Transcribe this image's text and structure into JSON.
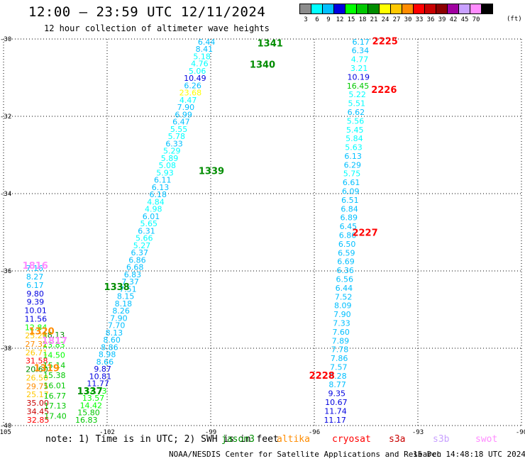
{
  "header": {
    "title": "12:00 – 23:59 UTC 12/11/2024",
    "subtitle": "12 hour collection of altimeter wave heights"
  },
  "legend": {
    "unit": "(ft)",
    "bins": [
      {
        "label": "3",
        "color": "#8c8c8c"
      },
      {
        "label": "6",
        "color": "#00ffff"
      },
      {
        "label": "9",
        "color": "#00bfff"
      },
      {
        "label": "12",
        "color": "#0000e0"
      },
      {
        "label": "15",
        "color": "#00ff00"
      },
      {
        "label": "18",
        "color": "#00c800"
      },
      {
        "label": "21",
        "color": "#008c00"
      },
      {
        "label": "24",
        "color": "#ffff00"
      },
      {
        "label": "27",
        "color": "#ffc800"
      },
      {
        "label": "30",
        "color": "#ff8c00"
      },
      {
        "label": "33",
        "color": "#ff0000"
      },
      {
        "label": "36",
        "color": "#c80000"
      },
      {
        "label": "39",
        "color": "#8c0000"
      },
      {
        "label": "42",
        "color": "#a000a0"
      },
      {
        "label": "45",
        "color": "#c8a0ff"
      },
      {
        "label": "70",
        "color": "#ff8cff"
      },
      {
        "label": "",
        "color": "#000000"
      }
    ]
  },
  "map_data": {
    "lon_ticks": [
      {
        "value": -105,
        "label": "-105"
      },
      {
        "value": -102,
        "label": "-102"
      },
      {
        "value": -99,
        "label": "-99"
      },
      {
        "value": -96,
        "label": "-96"
      },
      {
        "value": -93,
        "label": "-93"
      },
      {
        "value": -90,
        "label": "-90"
      }
    ],
    "lat_ticks": [
      {
        "value": -30,
        "label": "-30"
      },
      {
        "value": -32,
        "label": "-32"
      },
      {
        "value": -34,
        "label": "-34"
      },
      {
        "value": -36,
        "label": "-36"
      },
      {
        "value": -38,
        "label": "-38"
      },
      {
        "value": -40,
        "label": "-40"
      }
    ],
    "lon_range": [
      -105,
      -90
    ],
    "lat_range": [
      -40,
      -30
    ],
    "grid": true,
    "tracks": [
      {
        "lon_start": -99.12,
        "lat_start": -30.07,
        "lon_end": -102.6,
        "lat_end": -39.85,
        "values": [
          "6.44",
          "8.41",
          "5.18",
          "4.76",
          "5.06",
          "10.49",
          "6.26",
          "23.68",
          "4.47",
          "7.90",
          "6.99",
          "6.47",
          "5.55",
          "5.78",
          "6.33",
          "5.29",
          "5.89",
          "5.08",
          "5.93",
          "6.11",
          "6.13",
          "6.18",
          "4.84",
          "4.98",
          "6.01",
          "5.65",
          "6.31",
          "5.66",
          "5.27",
          "6.37",
          "6.86",
          "6.68",
          "6.83",
          "7.37",
          "7.51",
          "8.15",
          "8.18",
          "8.26",
          "7.90",
          "7.70",
          "8.13",
          "8.60",
          "8.86",
          "8.98",
          "8.66",
          "9.87",
          "10.81",
          "11.77",
          "12.73",
          "13.57",
          "14.42",
          "15.80",
          "16.83"
        ]
      },
      {
        "lon_start": -104.1,
        "lat_start": -35.93,
        "lon_end": -104.0,
        "lat_end": -39.85,
        "values": [
          "7.16",
          "8.27",
          "6.17",
          "9.80",
          "9.39",
          "10.01",
          "11.56",
          "12.84",
          "25.26",
          "27.32",
          "26.71",
          "31.58",
          "20.60",
          "26.50",
          "29.75",
          "25.17",
          "35.00",
          "34.45",
          "32.85"
        ]
      },
      {
        "lon_start": -103.55,
        "lat_start": -37.65,
        "lon_end": -103.5,
        "lat_end": -39.75,
        "values": [
          "18.13",
          "13.83",
          "14.50",
          "15.14",
          "15.38",
          "16.01",
          "16.77",
          "17.13",
          "17.40"
        ]
      },
      {
        "lon_start": -94.65,
        "lat_start": -30.07,
        "lon_end": -95.4,
        "lat_end": -39.85,
        "values": [
          "6.17",
          "6.34",
          "4.77",
          "3.21",
          "10.19",
          "16.45",
          "5.22",
          "5.51",
          "6.62",
          "5.56",
          "5.45",
          "5.84",
          "5.63",
          "6.13",
          "6.29",
          "5.75",
          "6.61",
          "6.09",
          "6.51",
          "6.84",
          "6.89",
          "6.45",
          "6.86",
          "6.50",
          "6.59",
          "6.69",
          "6.36",
          "6.56",
          "6.44",
          "7.52",
          "8.09",
          "7.90",
          "7.33",
          "7.60",
          "7.89",
          "7.78",
          "7.86",
          "7.57",
          "8.28",
          "8.77",
          "9.35",
          "10.67",
          "11.74",
          "11.17"
        ]
      }
    ],
    "pass_labels": [
      {
        "text": "1341",
        "lon": -97.28,
        "lat": -30.1,
        "color": "#008c00"
      },
      {
        "text": "1340",
        "lon": -97.5,
        "lat": -30.65,
        "color": "#008c00"
      },
      {
        "text": "1339",
        "lon": -98.98,
        "lat": -33.4,
        "color": "#008c00"
      },
      {
        "text": "1338",
        "lon": -101.72,
        "lat": -36.4,
        "color": "#008c00"
      },
      {
        "text": "1337",
        "lon": -102.5,
        "lat": -39.1,
        "color": "#008c00"
      },
      {
        "text": "1816",
        "lon": -104.08,
        "lat": -35.85,
        "color": "#ff8cff"
      },
      {
        "text": "1817",
        "lon": -103.52,
        "lat": -37.8,
        "color": "#ff8cff"
      },
      {
        "text": "1320",
        "lon": -103.9,
        "lat": -37.55,
        "color": "#ff8c00"
      },
      {
        "text": "1319",
        "lon": -103.75,
        "lat": -38.5,
        "color": "#ff8c00"
      },
      {
        "text": "2225",
        "lon": -93.95,
        "lat": -30.05,
        "color": "#ff0000"
      },
      {
        "text": "2226",
        "lon": -93.98,
        "lat": -31.3,
        "color": "#ff0000"
      },
      {
        "text": "2227",
        "lon": -94.53,
        "lat": -35.0,
        "color": "#ff0000"
      },
      {
        "text": "2228",
        "lon": -95.78,
        "lat": -38.7,
        "color": "#ff0000"
      }
    ]
  },
  "footer": {
    "note": "note: 1) Time is in UTC; 2) SWH is in feet",
    "satellites": [
      {
        "name": "jason3",
        "color": "#008c00"
      },
      {
        "name": "altika",
        "color": "#ff8c00"
      },
      {
        "name": "cryosat",
        "color": "#ff0000"
      },
      {
        "name": "s3a",
        "color": "#c80000"
      },
      {
        "name": "s3b",
        "color": "#c8a0ff"
      },
      {
        "name": "swot",
        "color": "#ff8cff"
      }
    ],
    "credit": "NOAA/NESDIS Center for Satellite Applications and Research",
    "timestamp": "15 Dec 14:48:18 UTC 2024"
  }
}
